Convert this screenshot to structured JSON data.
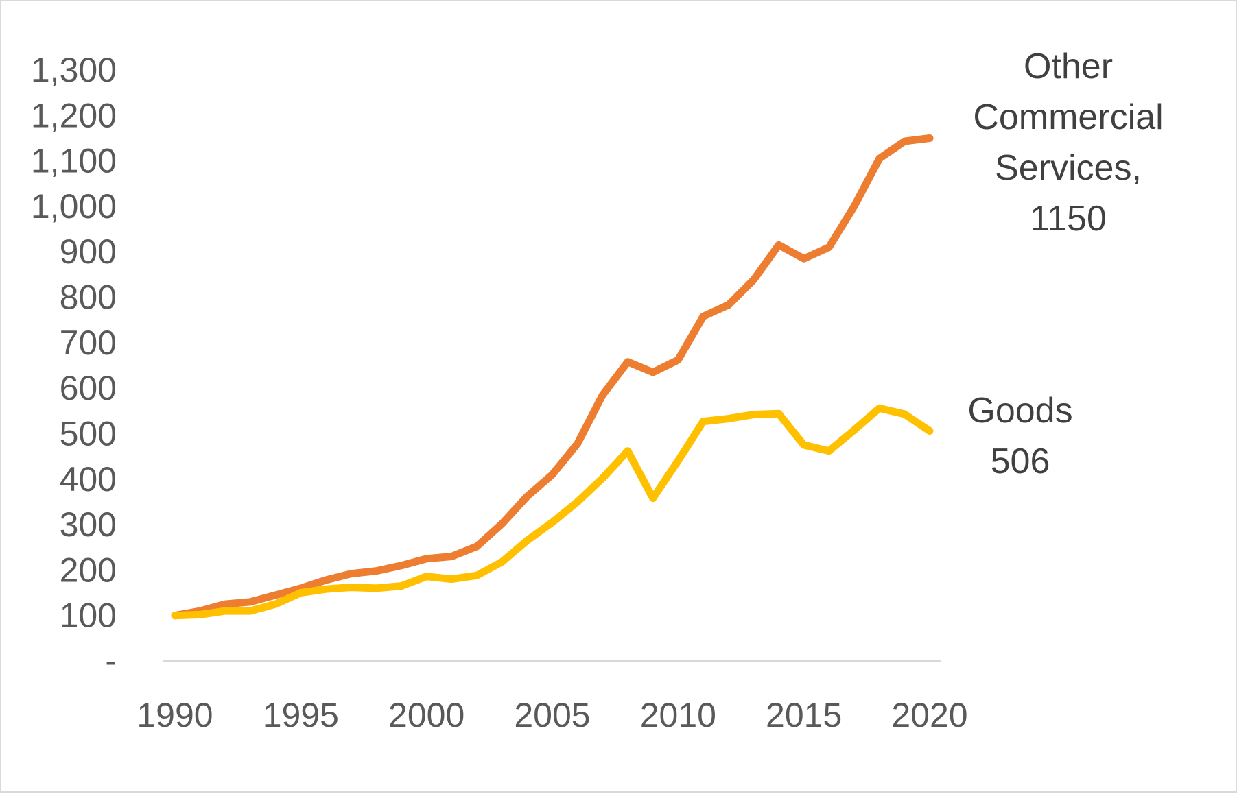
{
  "chart_data": {
    "type": "line",
    "title": "",
    "xlabel": "",
    "ylabel": "",
    "xlim": [
      1990,
      2020
    ],
    "ylim": [
      0,
      1300
    ],
    "grid": false,
    "legend": "none",
    "x_tick_labels": [
      "1990",
      "1995",
      "2000",
      "2005",
      "2010",
      "2015",
      "2020"
    ],
    "y_tick_labels": [
      "-",
      "100",
      "200",
      "300",
      "400",
      "500",
      "600",
      "700",
      "800",
      "900",
      "1,000",
      "1,100",
      "1,200",
      "1,300"
    ],
    "x": [
      1990,
      1991,
      1992,
      1993,
      1994,
      1995,
      1996,
      1997,
      1998,
      1999,
      2000,
      2001,
      2002,
      2003,
      2004,
      2005,
      2006,
      2007,
      2008,
      2009,
      2010,
      2011,
      2012,
      2013,
      2014,
      2015,
      2016,
      2017,
      2018,
      2019,
      2020
    ],
    "series": [
      {
        "name": "Other Commercial Services",
        "color": "#ED7D31",
        "values": [
          100,
          110,
          125,
          130,
          145,
          160,
          178,
          192,
          198,
          210,
          225,
          230,
          252,
          302,
          362,
          410,
          478,
          585,
          658,
          635,
          662,
          758,
          783,
          838,
          915,
          885,
          910,
          1000,
          1105,
          1143,
          1150
        ]
      },
      {
        "name": "Goods",
        "color": "#FFC000",
        "values": [
          100,
          102,
          110,
          110,
          125,
          150,
          158,
          162,
          160,
          165,
          186,
          180,
          188,
          218,
          265,
          305,
          350,
          402,
          462,
          358,
          440,
          527,
          533,
          542,
          544,
          475,
          462,
          508,
          556,
          543,
          506
        ]
      }
    ],
    "annotations": {
      "other_commercial_services": [
        "Other",
        "Commercial",
        "Services,",
        "1150"
      ],
      "goods": [
        "Goods",
        "506"
      ]
    },
    "colors": {
      "axis": "#d9d9d9",
      "tick_text": "#595959",
      "label_text": "#404040",
      "border": "#d9d9d9"
    }
  }
}
